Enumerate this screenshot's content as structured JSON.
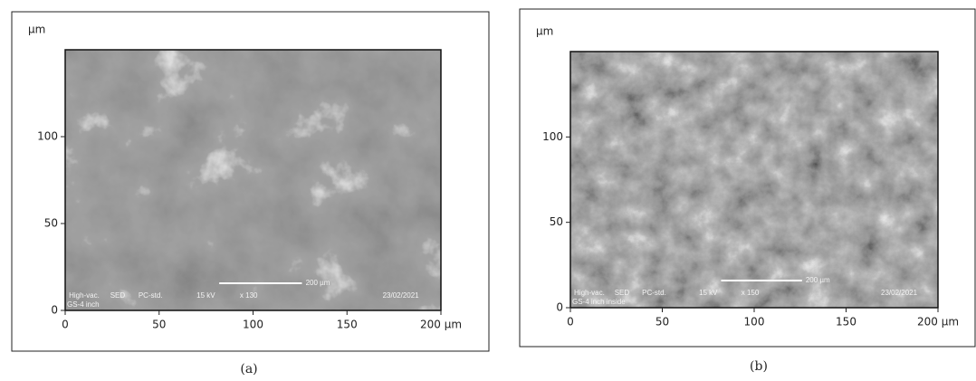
{
  "chart_data": [
    {
      "type": "image",
      "caption": "(a)",
      "y_label": "µm",
      "xlim": [
        0,
        200
      ],
      "ylim": [
        0,
        150
      ],
      "xticks": [
        0,
        50,
        100,
        150,
        {
          "value": 200,
          "label": "200 µm"
        }
      ],
      "yticks": [
        0,
        50,
        100
      ],
      "scale_bar": "200 µm",
      "info": [
        "High-vac.",
        "SED",
        "PC-std.",
        "15 kV",
        "x 130",
        "23/02/2021"
      ],
      "sample": "GS-4 inch"
    },
    {
      "type": "image",
      "caption": "(b)",
      "y_label": "µm",
      "xlim": [
        0,
        200
      ],
      "ylim": [
        0,
        150
      ],
      "xticks": [
        0,
        50,
        100,
        150,
        {
          "value": 200,
          "label": "200 µm"
        }
      ],
      "yticks": [
        0,
        50,
        100
      ],
      "scale_bar": "200 µm",
      "info": [
        "High-vac.",
        "SED",
        "PC-std.",
        "15 kV",
        "x 150",
        "23/02/2021"
      ],
      "sample": "GS-4 inch inside"
    }
  ]
}
